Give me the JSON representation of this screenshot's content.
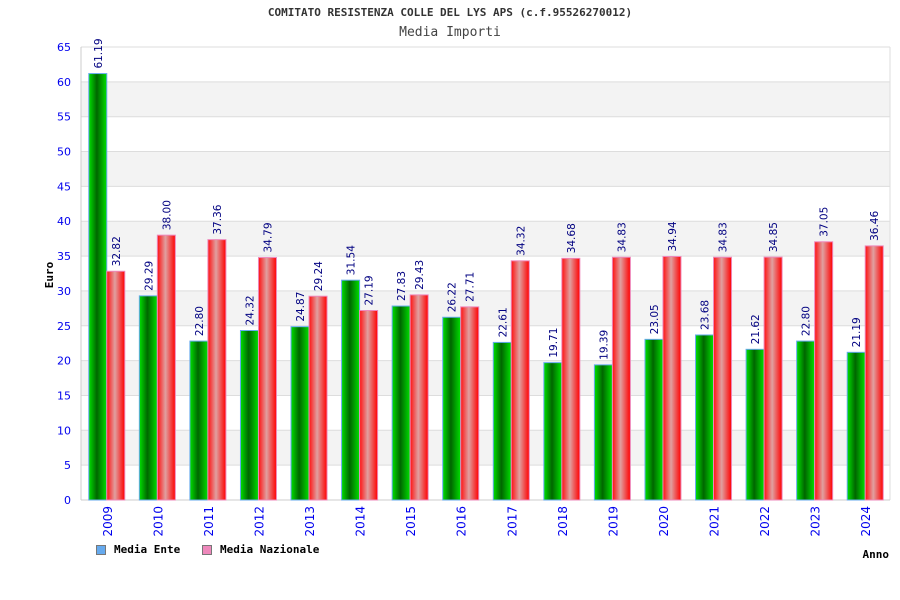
{
  "chart_data": {
    "type": "bar",
    "title": "COMITATO RESISTENZA COLLE DEL LYS APS (c.f.95526270012)",
    "subtitle": "Media Importi",
    "xlabel": "Anno",
    "ylabel": "Euro",
    "ylim": [
      0,
      65
    ],
    "yticks": [
      0,
      5,
      10,
      15,
      20,
      25,
      30,
      35,
      40,
      45,
      50,
      55,
      60,
      65
    ],
    "grid": true,
    "legend": "bottom-left",
    "categories": [
      "2009",
      "2010",
      "2011",
      "2012",
      "2013",
      "2014",
      "2015",
      "2016",
      "2017",
      "2018",
      "2019",
      "2020",
      "2021",
      "2022",
      "2023",
      "2024"
    ],
    "series": [
      {
        "name": "Media Ente",
        "color": "#00c000",
        "legend_color": "#66aaee",
        "values": [
          61.19,
          29.29,
          22.8,
          24.32,
          24.87,
          31.54,
          27.83,
          26.22,
          22.61,
          19.71,
          19.39,
          23.05,
          23.68,
          21.62,
          22.8,
          21.19
        ]
      },
      {
        "name": "Media Nazionale",
        "color": "#ff0000",
        "legend_color": "#ee88bb",
        "values": [
          32.82,
          38.0,
          37.36,
          34.79,
          29.24,
          27.19,
          29.43,
          27.71,
          34.32,
          34.68,
          34.83,
          34.94,
          34.83,
          34.85,
          37.05,
          36.46
        ]
      }
    ]
  }
}
